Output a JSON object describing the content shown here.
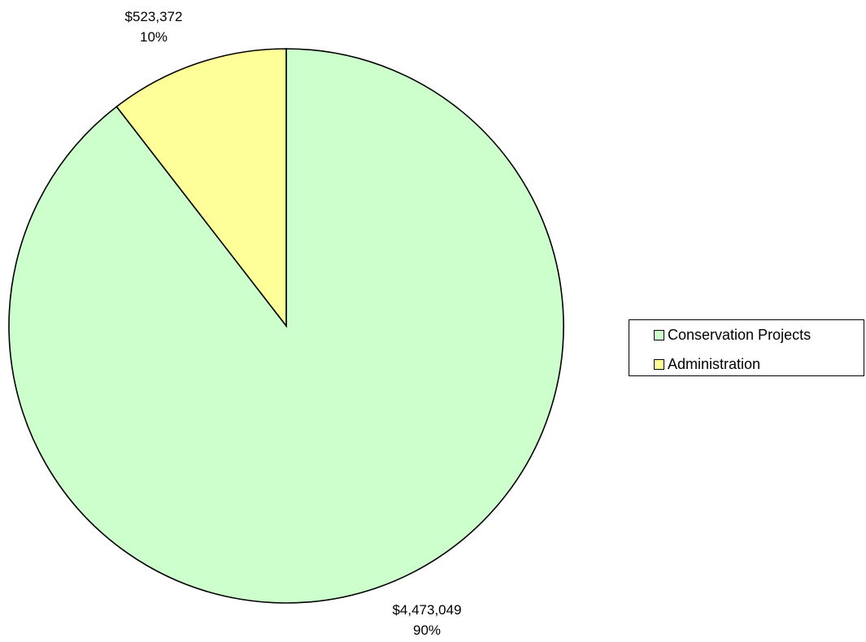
{
  "chart_data": {
    "type": "pie",
    "title": "",
    "series": [
      {
        "values": [
          4473049,
          523372
        ],
        "categories": [
          "Conservation Projects",
          "Administration"
        ]
      }
    ],
    "slices": [
      {
        "label": "Conservation Projects",
        "value": 4473049,
        "value_text": "$4,473,049",
        "percent_text": "90%",
        "color": "#ccffcc"
      },
      {
        "label": "Administration",
        "value": 523372,
        "value_text": "$523,372",
        "percent_text": "10%",
        "color": "#ffff99"
      }
    ],
    "start_angle": "12 o'clock",
    "direction": "clockwise",
    "legend": {
      "position": "right",
      "entries": [
        "Conservation Projects",
        "Administration"
      ]
    }
  }
}
